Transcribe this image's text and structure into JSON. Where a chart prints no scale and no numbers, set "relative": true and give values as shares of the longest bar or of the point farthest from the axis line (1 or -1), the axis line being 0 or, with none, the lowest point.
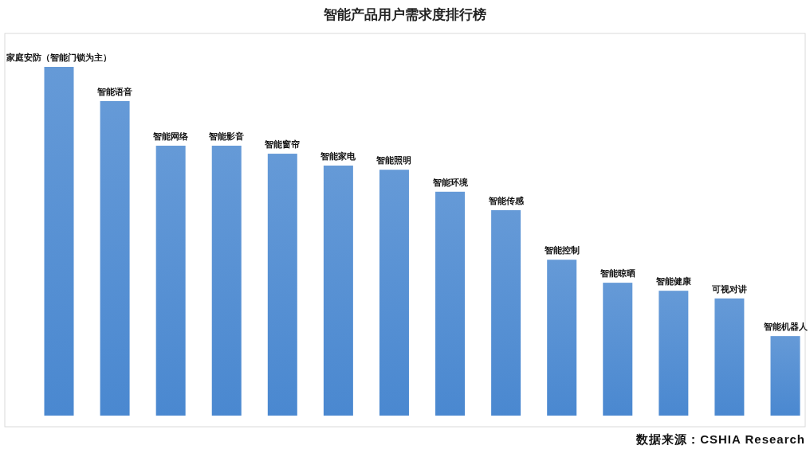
{
  "chart_data": {
    "type": "bar",
    "title": "智能产品用户需求度排行榜",
    "relative": true,
    "categories": [
      "家庭安防（智能门锁为主）",
      "智能语音",
      "智能网络",
      "智能影音",
      "智能窗帘",
      "智能家电",
      "智能照明",
      "智能环境",
      "智能传感",
      "智能控制",
      "智能晾晒",
      "智能健康",
      "可视对讲",
      "智能机器人"
    ],
    "values": [
      1,
      0.902,
      0.774,
      0.774,
      0.751,
      0.717,
      0.705,
      0.642,
      0.589,
      0.447,
      0.381,
      0.358,
      0.336,
      0.228
    ],
    "color": "#4a88d0",
    "annotations": [
      "数据来源：CSHIA Research"
    ]
  }
}
